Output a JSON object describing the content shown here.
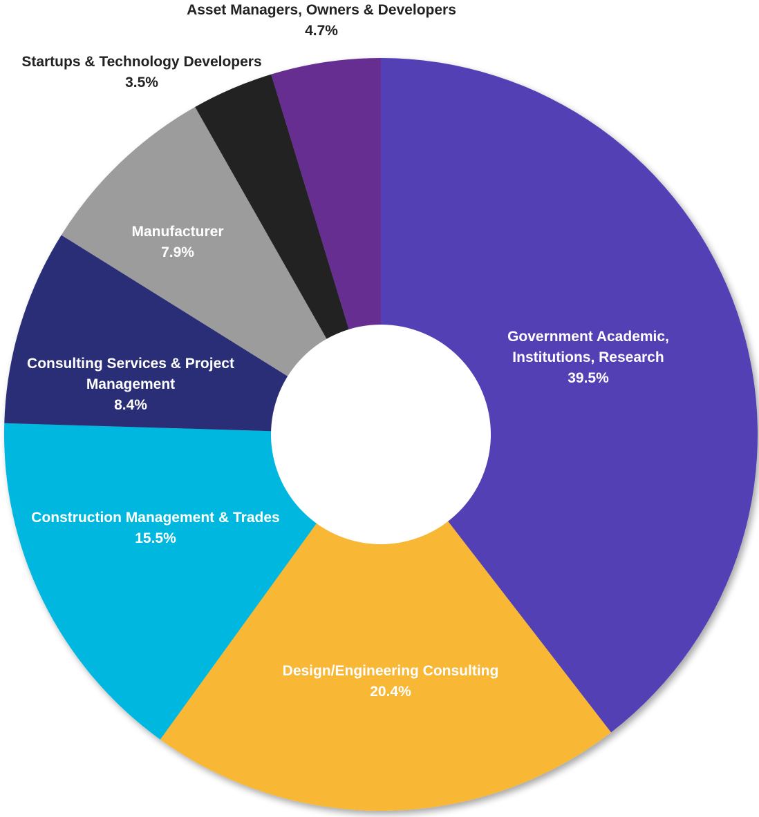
{
  "chart_data": {
    "type": "pie",
    "variant": "donut",
    "title": "",
    "slices": [
      {
        "label": "Government Academic, Institutions, Research",
        "value": 39.5,
        "value_label": "39.5%",
        "color": "#5340b5",
        "label_color": "#ffffff"
      },
      {
        "label": "Design/Engineering Consulting",
        "value": 20.4,
        "value_label": "20.4%",
        "color": "#f8b734",
        "label_color": "#ffffff"
      },
      {
        "label": "Construction Management & Trades",
        "value": 15.5,
        "value_label": "15.5%",
        "color": "#04b8df",
        "label_color": "#ffffff"
      },
      {
        "label": "Consulting Services & Project Management",
        "value": 8.4,
        "value_label": "8.4%",
        "color": "#2b2f77",
        "label_color": "#ffffff"
      },
      {
        "label": "Manufacturer",
        "value": 7.9,
        "value_label": "7.9%",
        "color": "#9c9c9c",
        "label_color": "#ffffff"
      },
      {
        "label": "Startups & Technology Developers",
        "value": 3.5,
        "value_label": "3.5%",
        "color": "#222222",
        "label_color": "#222222"
      },
      {
        "label": "Asset Managers, Owners & Developers",
        "value": 4.7,
        "value_label": "4.7%",
        "color": "#652d90",
        "label_color": "#222222"
      }
    ],
    "start_angle_deg": 0,
    "direction": "clockwise",
    "center_color": "#ffffff",
    "background": "#ffffff"
  }
}
